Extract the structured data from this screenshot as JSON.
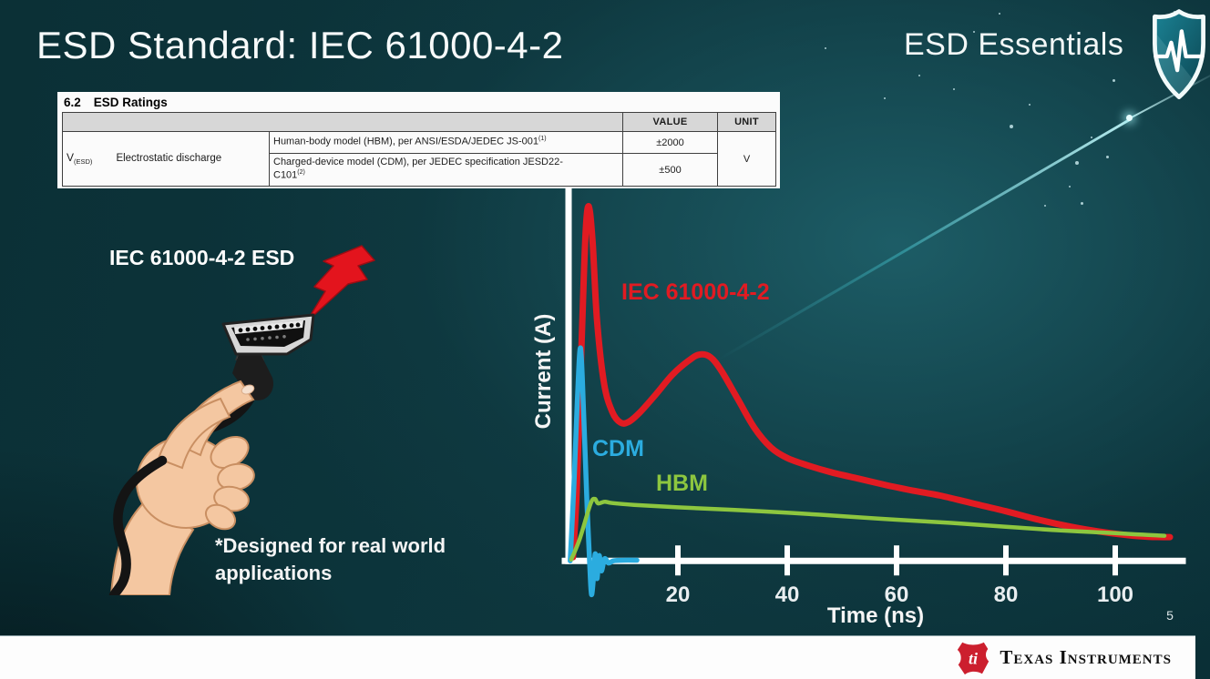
{
  "slide": {
    "title": "ESD Standard: IEC 61000-4-2",
    "series_title": "ESD Essentials",
    "page_number": "5",
    "footnote": "*Designed for real world applications"
  },
  "ratings_table": {
    "section_number": "6.2",
    "section_title": "ESD Ratings",
    "headers": {
      "value": "VALUE",
      "unit": "UNIT"
    },
    "param_symbol": "V",
    "param_symbol_sub": "(ESD)",
    "param_name": "Electrostatic discharge",
    "rows": [
      {
        "desc": "Human-body model (HBM), per ANSI/ESDA/JEDEC JS-001",
        "sup": "(1)",
        "value": "±2000"
      },
      {
        "desc": "Charged-device model (CDM), per JEDEC specification JESD22-C101",
        "sup": "(2)",
        "value": "±500"
      }
    ],
    "unit": "V"
  },
  "illustration": {
    "label": "IEC 61000-4-2 ESD"
  },
  "footer": {
    "logo_text": "Texas Instruments"
  },
  "colors": {
    "iec_red": "#e11b22",
    "cdm_blue": "#2bacdf",
    "hbm_green": "#8dc63f",
    "ti_red": "#cc1f2e",
    "background_teal": "#0d363d"
  },
  "chart_data": {
    "type": "line",
    "title": "",
    "xlabel": "Time (ns)",
    "ylabel": "Current (A)",
    "x_ticks": [
      20,
      40,
      60,
      80,
      100
    ],
    "x_range": [
      0,
      112
    ],
    "y_range": [
      -0.12,
      1.04
    ],
    "y_tick_labels": false,
    "grid": false,
    "legend_position": "inline-labels",
    "series": [
      {
        "name": "IEC 61000-4-2",
        "color": "#e11b22",
        "stroke_width": 7,
        "points": [
          [
            0.8,
            0.01
          ],
          [
            1.5,
            0.2
          ],
          [
            2.4,
            0.62
          ],
          [
            3.1,
            0.92
          ],
          [
            3.7,
            1.0
          ],
          [
            4.4,
            0.9
          ],
          [
            5.2,
            0.68
          ],
          [
            6.5,
            0.5
          ],
          [
            8,
            0.42
          ],
          [
            9.5,
            0.39
          ],
          [
            11,
            0.392
          ],
          [
            13,
            0.418
          ],
          [
            16,
            0.47
          ],
          [
            19,
            0.525
          ],
          [
            22,
            0.565
          ],
          [
            24,
            0.582
          ],
          [
            26,
            0.574
          ],
          [
            28,
            0.535
          ],
          [
            31,
            0.455
          ],
          [
            34,
            0.375
          ],
          [
            37,
            0.32
          ],
          [
            40,
            0.29
          ],
          [
            44,
            0.268
          ],
          [
            48,
            0.25
          ],
          [
            53,
            0.232
          ],
          [
            58,
            0.214
          ],
          [
            63,
            0.198
          ],
          [
            68,
            0.184
          ],
          [
            74,
            0.162
          ],
          [
            80,
            0.14
          ],
          [
            86,
            0.116
          ],
          [
            92,
            0.096
          ],
          [
            97,
            0.083
          ],
          [
            102,
            0.073
          ],
          [
            106,
            0.068
          ],
          [
            110,
            0.067
          ]
        ]
      },
      {
        "name": "CDM",
        "color": "#2bacdf",
        "stroke_width": 5.5,
        "points": [
          [
            0.3,
            0.0
          ],
          [
            1.0,
            0.22
          ],
          [
            1.6,
            0.45
          ],
          [
            2.2,
            0.6
          ],
          [
            2.8,
            0.4
          ],
          [
            3.4,
            0.15
          ],
          [
            3.9,
            -0.02
          ],
          [
            4.2,
            -0.095
          ],
          [
            4.6,
            -0.04
          ],
          [
            4.9,
            0.02
          ],
          [
            5.2,
            -0.05
          ],
          [
            5.6,
            0.015
          ],
          [
            6.0,
            -0.028
          ],
          [
            6.6,
            0.006
          ],
          [
            7.3,
            -0.006
          ],
          [
            8.2,
            0.0
          ],
          [
            10,
            0.002
          ],
          [
            12.5,
            0.002
          ]
        ]
      },
      {
        "name": "HBM",
        "color": "#8dc63f",
        "stroke_width": 4.5,
        "points": [
          [
            0.5,
            0.004
          ],
          [
            2,
            0.06
          ],
          [
            4.0,
            0.16
          ],
          [
            4.8,
            0.175
          ],
          [
            5.4,
            0.162
          ],
          [
            6.6,
            0.167
          ],
          [
            8,
            0.163
          ],
          [
            12,
            0.158
          ],
          [
            20,
            0.151
          ],
          [
            30,
            0.144
          ],
          [
            41,
            0.135
          ],
          [
            50,
            0.126
          ],
          [
            60,
            0.116
          ],
          [
            70,
            0.107
          ],
          [
            80,
            0.096
          ],
          [
            90,
            0.086
          ],
          [
            100,
            0.078
          ],
          [
            105,
            0.074
          ],
          [
            109,
            0.071
          ]
        ]
      }
    ]
  }
}
